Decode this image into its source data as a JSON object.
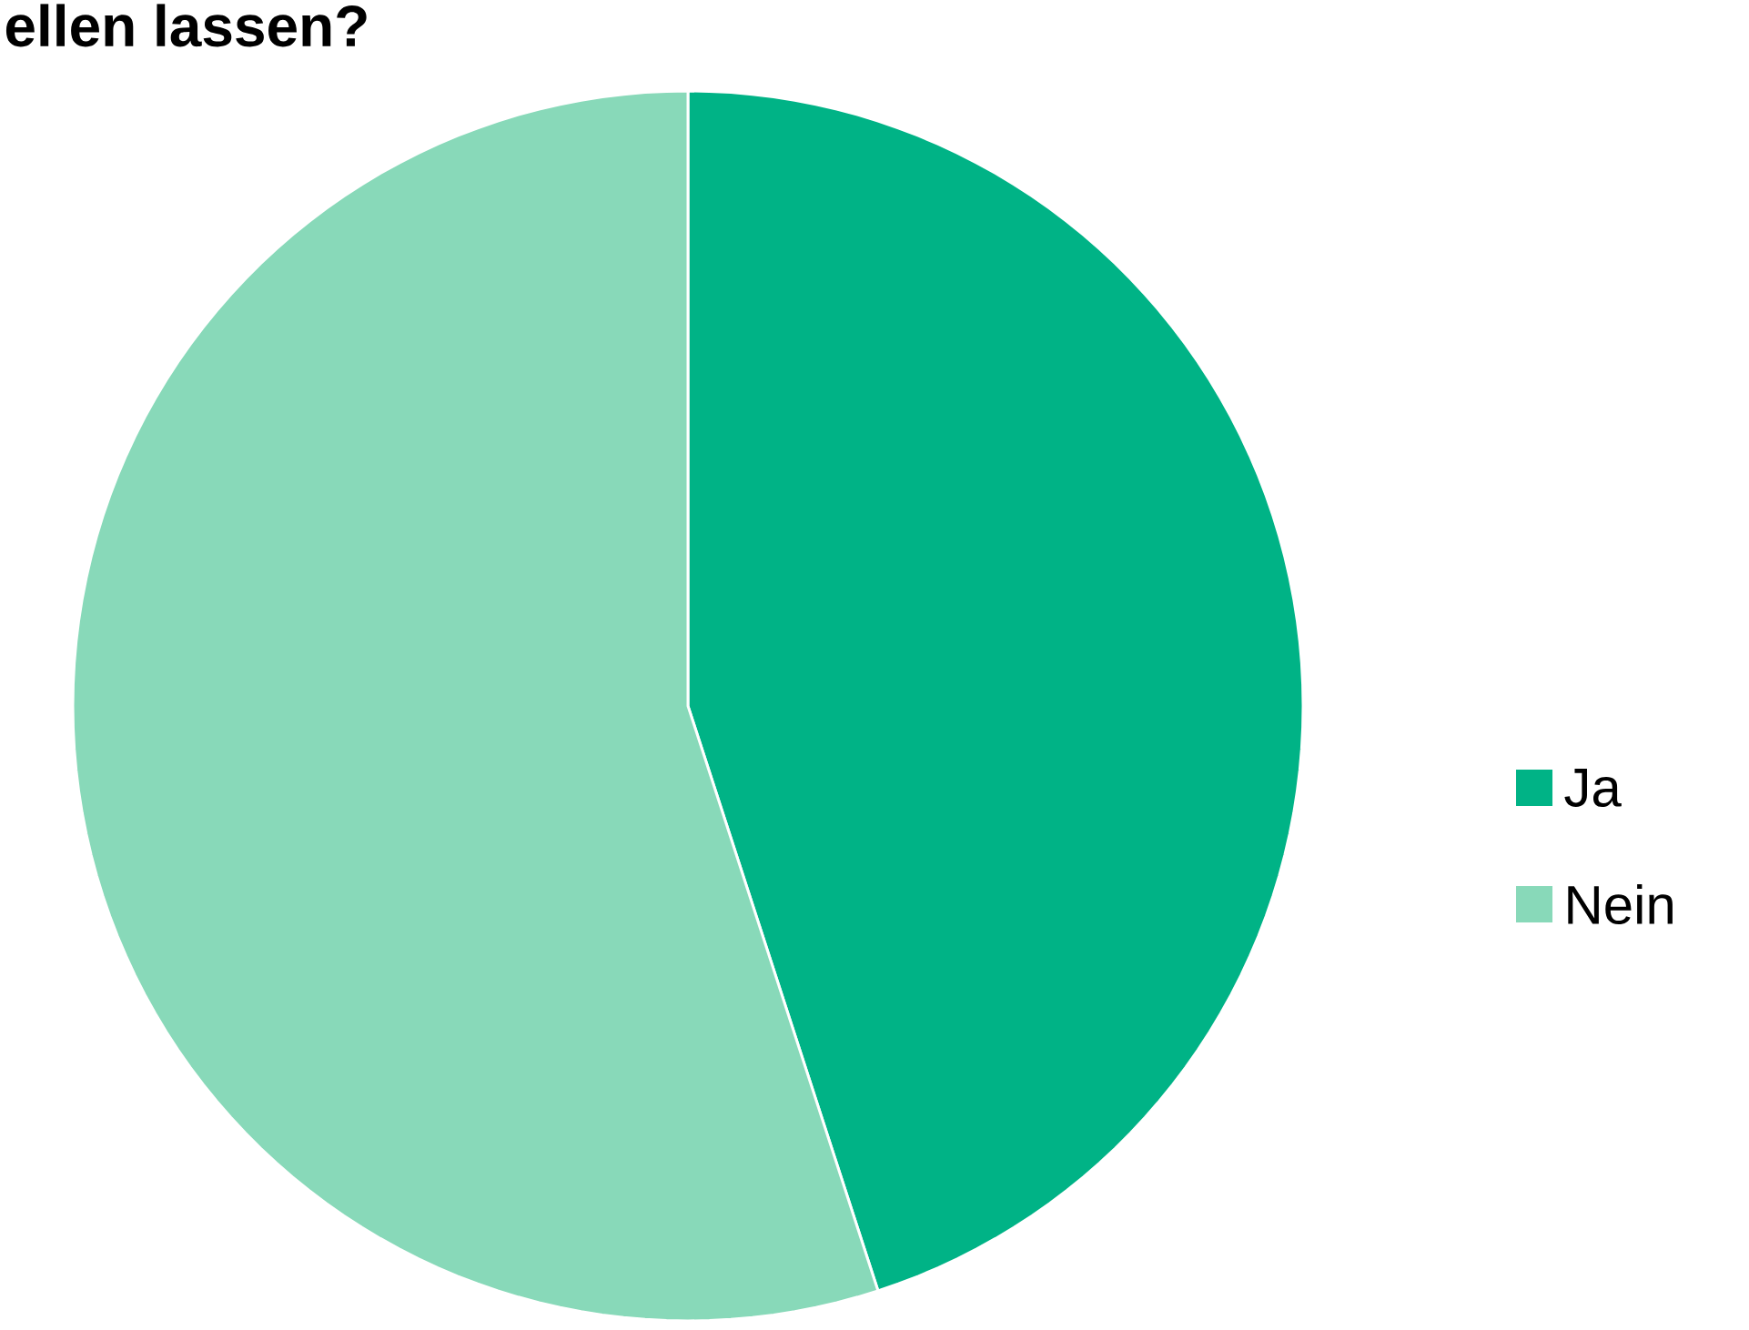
{
  "chart_data": {
    "type": "pie",
    "title": "ellen lassen?",
    "categories": [
      "Ja",
      "Nein"
    ],
    "values": [
      45,
      55
    ],
    "colors": [
      "#00b386",
      "#88d9b9"
    ],
    "legend": "right"
  }
}
